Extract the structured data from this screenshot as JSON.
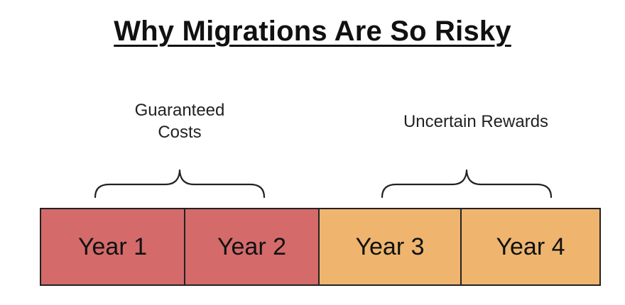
{
  "title": "Why Migrations Are So Risky",
  "labels": {
    "costs": "Guaranteed\nCosts",
    "rewards": "Uncertain Rewards"
  },
  "years": [
    {
      "label": "Year 1",
      "color": "#d46a6a"
    },
    {
      "label": "Year 2",
      "color": "#d46a6a"
    },
    {
      "label": "Year 3",
      "color": "#efb56f"
    },
    {
      "label": "Year 4",
      "color": "#efb56f"
    }
  ]
}
